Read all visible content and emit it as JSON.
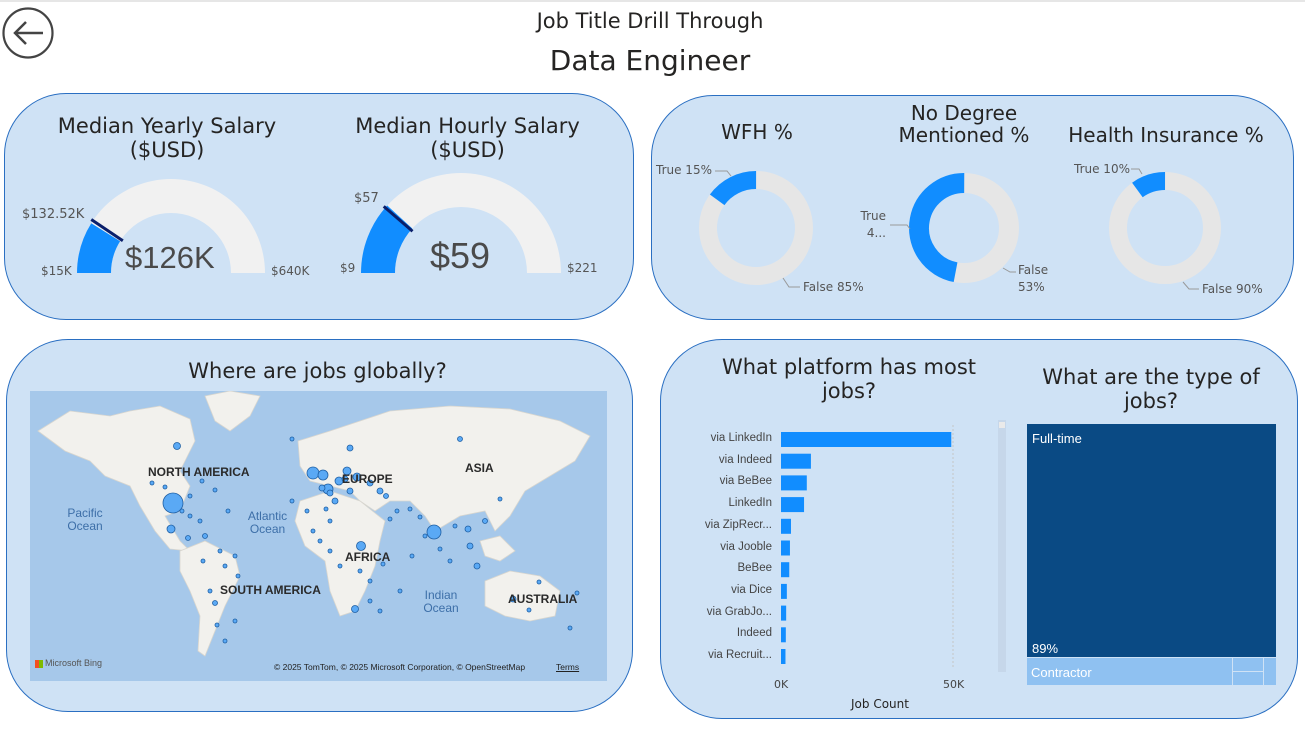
{
  "header": {
    "title": "Job Title Drill Through",
    "subtitle": "Data Engineer"
  },
  "salary": {
    "yearly": {
      "title": "Median Yearly Salary ($USD)",
      "value": "$126K",
      "min": "$15K",
      "max": "$640K",
      "target": "$132.52K"
    },
    "hourly": {
      "title": "Median Hourly Salary ($USD)",
      "value": "$59",
      "min": "$9",
      "max": "$221",
      "target": "$57"
    }
  },
  "donuts": {
    "wfh": {
      "title": "WFH %",
      "true_label": "True 15%",
      "false_label": "False 85%",
      "true_pct": 15
    },
    "degree": {
      "title": "No Degree Mentioned %",
      "true_label": "True 4...",
      "false_label": "False 53%",
      "true_pct": 47
    },
    "health": {
      "title": "Health Insurance %",
      "true_label": "True 10%",
      "false_label": "False 90%",
      "true_pct": 10
    }
  },
  "map": {
    "title": "Where are jobs globally?",
    "labels": {
      "na": "NORTH AMERICA",
      "europe": "EUROPE",
      "asia": "ASIA",
      "africa": "AFRICA",
      "sa": "SOUTH AMERICA",
      "aus": "AUSTRALIA"
    },
    "oceans": {
      "pacific": "Pacific Ocean",
      "atlantic": "Atlantic Ocean",
      "indian": "Indian Ocean"
    },
    "attribution": "© 2025 TomTom, © 2025 Microsoft Corporation, © OpenStreetMap",
    "terms": "Terms",
    "bing": "Microsoft Bing"
  },
  "platform": {
    "title": "What platform has most jobs?",
    "x_label": "Job Count",
    "ticks": [
      "0K",
      "50K"
    ]
  },
  "chart_data": {
    "type": "bar",
    "categories": [
      "via LinkedIn",
      "via Indeed",
      "via BeBee",
      "LinkedIn",
      "via ZipRecr...",
      "via Jooble",
      "BeBee",
      "via Dice",
      "via GrabJo...",
      "Indeed",
      "via Recruit..."
    ],
    "values": [
      49500,
      8700,
      7500,
      6700,
      2900,
      2600,
      2400,
      1700,
      1500,
      1400,
      1300
    ],
    "xlabel": "Job Count",
    "ylabel": "",
    "xlim": [
      0,
      50000
    ]
  },
  "types": {
    "title": "What are the type of jobs?",
    "full_time": "Full-time",
    "full_time_pct": "89%",
    "contractor": "Contractor"
  },
  "colors": {
    "accent": "#118dff",
    "track": "#e6e6e6",
    "card": "#cfe2f5",
    "border": "#2a6fc2",
    "dark": "#0a4a84",
    "light": "#8fc1f1"
  }
}
